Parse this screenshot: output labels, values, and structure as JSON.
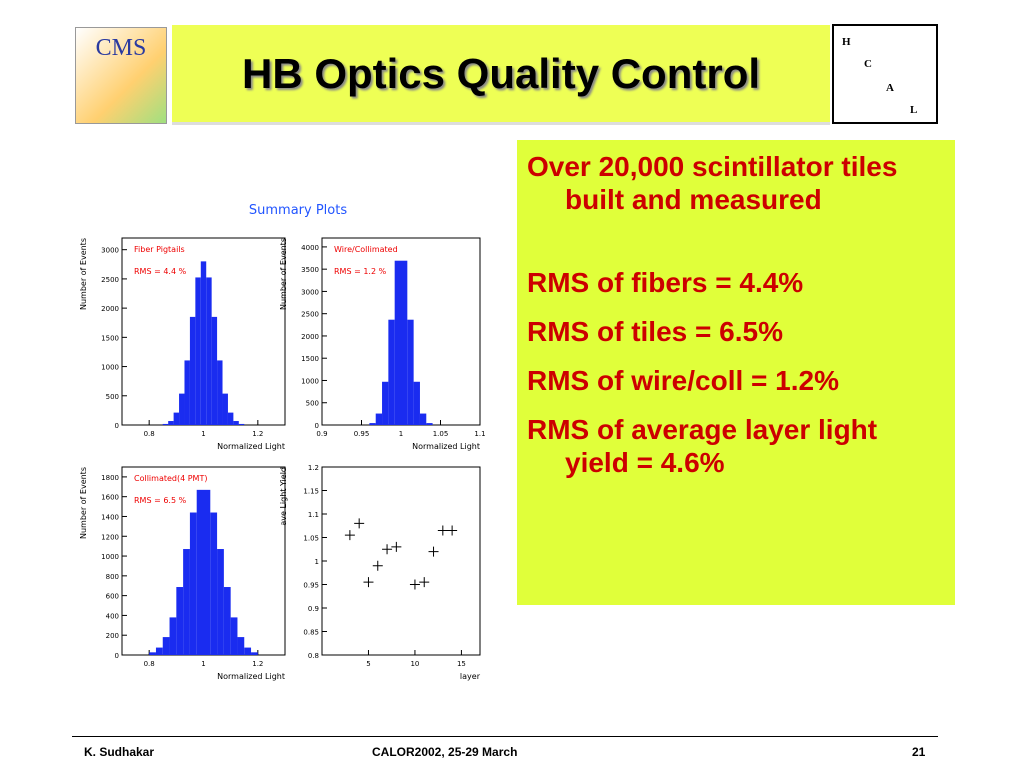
{
  "header": {
    "logo": "CMS",
    "title": "HB Optics Quality Control",
    "hcal": [
      "H",
      "C",
      "A",
      "L"
    ]
  },
  "figure": {
    "title": "Summary Plots",
    "plots": [
      {
        "type": "histogram",
        "label": "Fiber Pigtails",
        "rms_label": "RMS =   4.4   %",
        "xlabel": "Normalized Light",
        "ylabel": "Number of Events",
        "color": "#1a2cf0",
        "bins": [
          0.85,
          0.87,
          0.89,
          0.91,
          0.93,
          0.95,
          0.97,
          0.99,
          1.01,
          1.03,
          1.05,
          1.07,
          1.09,
          1.11,
          1.13,
          1.15
        ],
        "values": [
          18,
          68,
          212,
          537,
          1105,
          1850,
          2525,
          2800,
          2525,
          1850,
          1105,
          537,
          212,
          68,
          18
        ],
        "xlim": [
          0.7,
          1.3
        ],
        "xticks": [
          0.8,
          1,
          1.2
        ],
        "ylim": [
          0,
          3200
        ],
        "yticks": [
          0,
          500,
          1000,
          1500,
          2000,
          2500,
          3000
        ]
      },
      {
        "type": "histogram",
        "label": "Wire/Collimated",
        "rms_label": "RMS =   1.2   %",
        "xlabel": "Normalized Light",
        "ylabel": "Number of Events",
        "color": "#1a2cf0",
        "bins": [
          0.96,
          0.968,
          0.976,
          0.984,
          0.992,
          1,
          1.008,
          1.016,
          1.024,
          1.032,
          1.04
        ],
        "values": [
          43,
          257,
          971,
          2365,
          3690,
          3690,
          2365,
          971,
          257,
          43
        ],
        "xlim": [
          0.9,
          1.1
        ],
        "xticks": [
          0.9,
          0.95,
          1,
          1.05,
          1.1
        ],
        "ylim": [
          0,
          4200
        ],
        "yticks": [
          0,
          500,
          1000,
          1500,
          2000,
          2500,
          3000,
          3500,
          4000
        ]
      },
      {
        "type": "histogram",
        "label": "Collimated(4 PMT)",
        "rms_label": "RMS =   6.5   %",
        "xlabel": "Normalized Light",
        "ylabel": "Number of Events",
        "color": "#1a2cf0",
        "bins": [
          0.8,
          0.825,
          0.85,
          0.875,
          0.9,
          0.925,
          0.95,
          0.975,
          1,
          1.025,
          1.05,
          1.075,
          1.1,
          1.125,
          1.15,
          1.175,
          1.2
        ],
        "values": [
          27,
          75,
          181,
          380,
          687,
          1071,
          1440,
          1669,
          1669,
          1440,
          1071,
          687,
          380,
          181,
          75,
          27
        ],
        "xlim": [
          0.7,
          1.3
        ],
        "xticks": [
          0.8,
          1,
          1.2
        ],
        "ylim": [
          0,
          1900
        ],
        "yticks": [
          0,
          200,
          400,
          600,
          800,
          1000,
          1200,
          1400,
          1600,
          1800
        ]
      },
      {
        "type": "scatter",
        "xlabel": "layer",
        "ylabel": "ave Light Yield",
        "color": "#000000",
        "x": [
          3,
          4,
          5,
          6,
          7,
          8,
          10,
          11,
          12,
          13,
          14
        ],
        "values": [
          1.055,
          1.08,
          0.955,
          0.99,
          1.025,
          1.03,
          0.95,
          0.955,
          1.02,
          1.065,
          1.065
        ],
        "xlim": [
          0,
          17
        ],
        "xticks": [
          5,
          10,
          15
        ],
        "ylim": [
          0.8,
          1.2
        ],
        "yticks": [
          0.8,
          0.85,
          0.9,
          0.95,
          1,
          1.05,
          1.1,
          1.15,
          1.2
        ]
      }
    ]
  },
  "bullets": [
    "Over 20,000 scintillator tiles built and measured",
    "RMS of fibers = 4.4%",
    "RMS of tiles = 6.5%",
    "RMS of wire/coll = 1.2%",
    "RMS of average  layer light yield = 4.6%"
  ],
  "footer": {
    "author": "K. Sudhakar",
    "event": "CALOR2002, 25-29 March",
    "page": "21"
  }
}
